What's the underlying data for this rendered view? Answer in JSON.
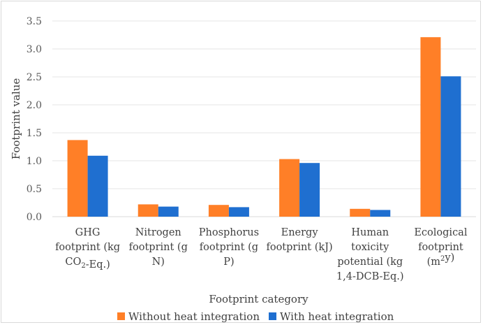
{
  "chart_data": {
    "type": "bar",
    "xlabel": "Footprint category",
    "ylabel": "Footprint value",
    "ylim": [
      0,
      3.5
    ],
    "yticks": [
      "0.0",
      "0.5",
      "1.0",
      "1.5",
      "2.0",
      "2.5",
      "3.0",
      "3.5"
    ],
    "grid": true,
    "legend_position": "bottom",
    "categories": [
      [
        "GHG",
        "footprint (kg",
        "CO₂-Eq.)"
      ],
      [
        "Nitrogen",
        "footprint (g",
        "N)"
      ],
      [
        "Phosphorus",
        "footprint (g",
        "P)"
      ],
      [
        "Energy",
        "footprint (kJ)"
      ],
      [
        "Human",
        "toxicity",
        "potential (kg",
        "1,4-DCB-Eq.)"
      ],
      [
        "Ecological",
        "footprint",
        "(m²y)"
      ]
    ],
    "series": [
      {
        "name": "Without heat integration",
        "color": "#ff7f27",
        "values": [
          1.37,
          0.22,
          0.21,
          1.03,
          0.14,
          3.21
        ]
      },
      {
        "name": "With heat integration",
        "color": "#1f6fd0",
        "values": [
          1.09,
          0.18,
          0.17,
          0.96,
          0.12,
          2.51
        ]
      }
    ]
  }
}
